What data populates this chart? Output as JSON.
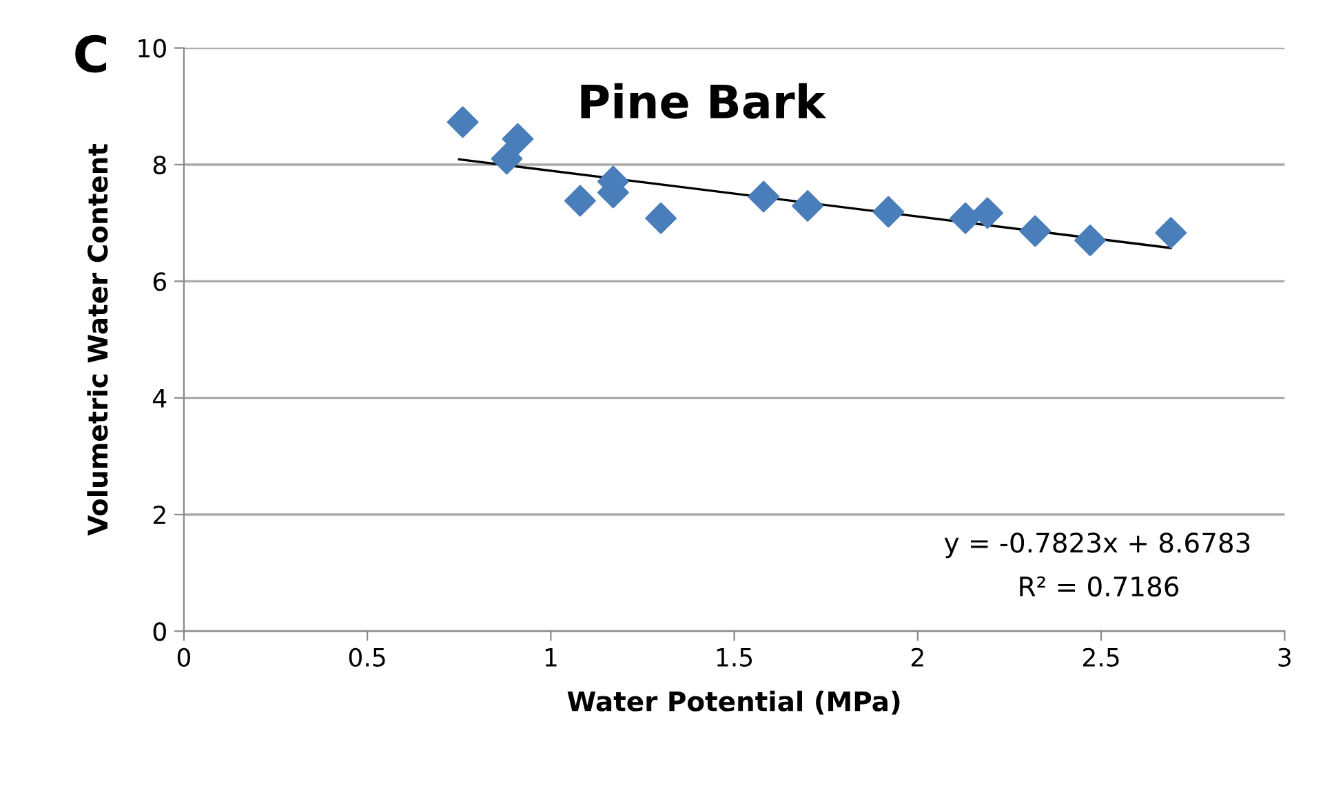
{
  "chart_data": {
    "type": "scatter",
    "title": "Pine Bark",
    "xlabel": "Water Potential (MPa)",
    "ylabel": "Volumetric Water Content",
    "annotations": [
      "C",
      "y = -0.7823x + 8.6783",
      "R² = 0.7186"
    ],
    "series": [
      {
        "color": "#4a7ebb",
        "marker": "diamond",
        "x": [
          0.76,
          0.88,
          0.91,
          1.08,
          1.17,
          1.17,
          1.3,
          1.58,
          1.7,
          1.92,
          2.13,
          2.19,
          2.32,
          2.47,
          2.69
        ],
        "values": [
          8.73,
          8.1,
          8.44,
          7.38,
          7.71,
          7.52,
          7.08,
          7.45,
          7.29,
          7.19,
          7.08,
          7.17,
          6.86,
          6.7,
          6.83
        ]
      },
      {
        "type": "line",
        "color": "#000000",
        "marker": "none",
        "x": [
          0.75,
          2.69
        ],
        "values": [
          8.09,
          6.57
        ]
      }
    ],
    "xlim": [
      0,
      3
    ],
    "xticks": [
      0,
      0.5,
      1,
      1.5,
      2,
      2.5,
      3
    ],
    "ylim": [
      0,
      10
    ],
    "yticks": [
      0,
      2,
      4,
      6,
      8,
      10
    ],
    "grid": "y",
    "legend": false
  }
}
